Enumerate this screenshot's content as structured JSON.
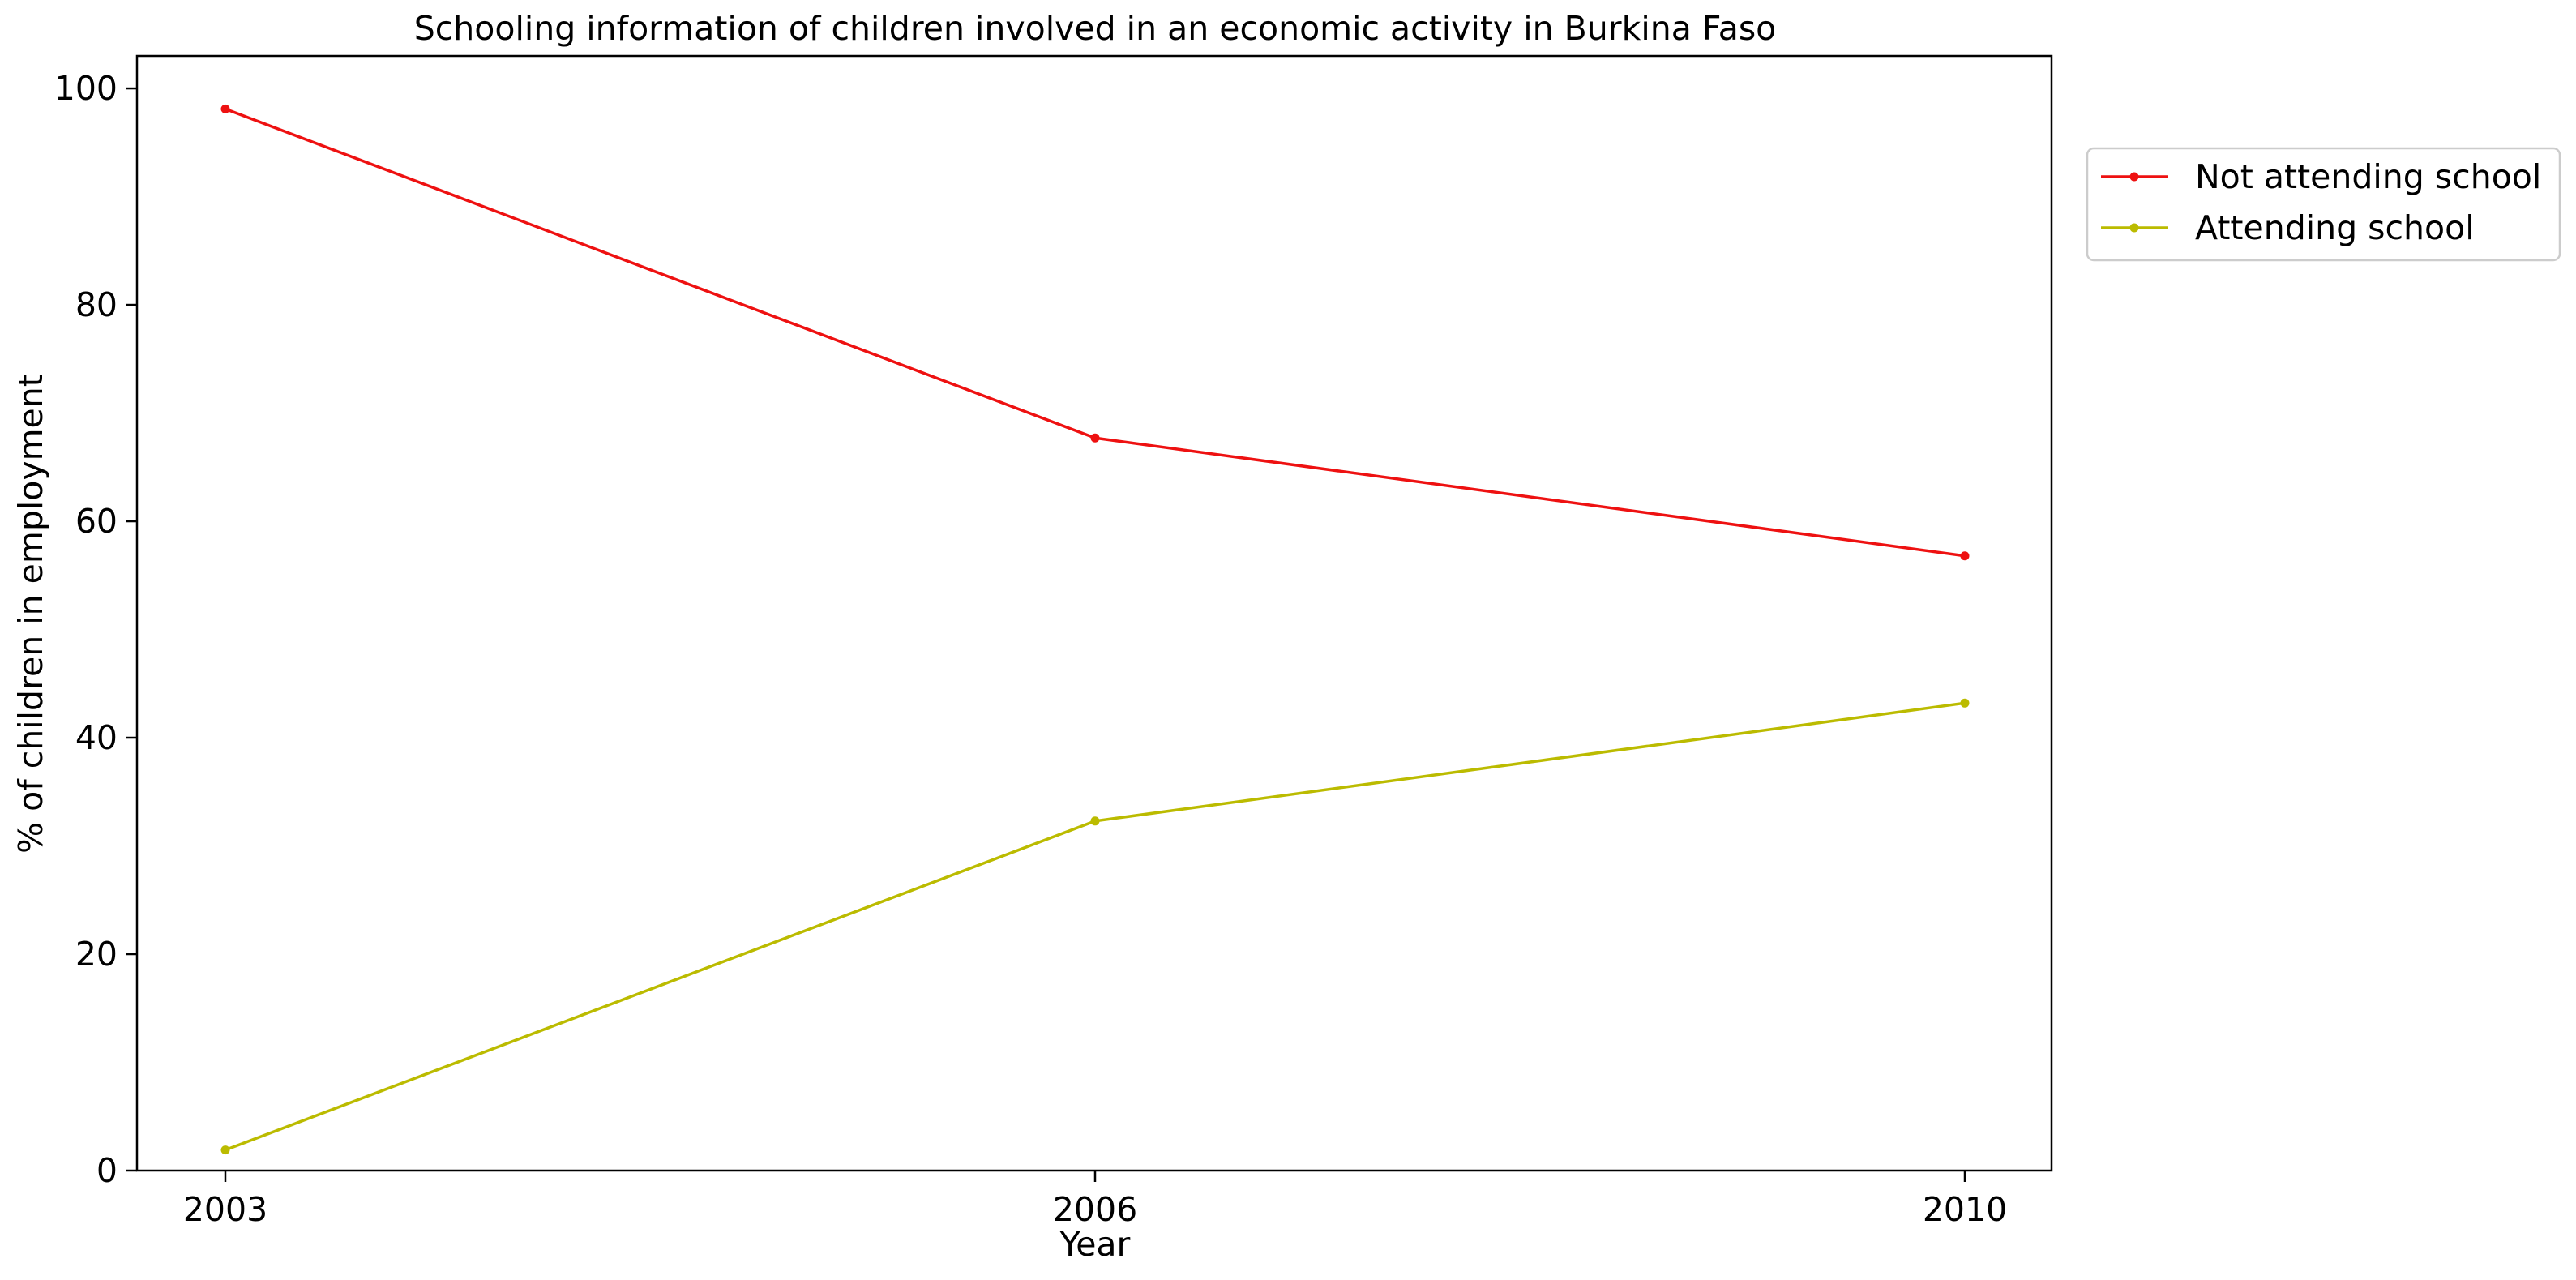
{
  "chart_data": {
    "type": "line",
    "title": "Schooling information of children involved in an economic activity in Burkina Faso",
    "xlabel": "Year",
    "ylabel": "% of children in employment",
    "categories": [
      "2003",
      "2006",
      "2010"
    ],
    "yticks": [
      "0",
      "20",
      "40",
      "60",
      "80",
      "100"
    ],
    "ylim": [
      0,
      103
    ],
    "grid": false,
    "legend_position": "outside-top-right",
    "series": [
      {
        "name": "Not attending school",
        "color": "#ee1111",
        "values": [
          98.1,
          67.7,
          56.8
        ]
      },
      {
        "name": "Attending school",
        "color": "#bbbb00",
        "values": [
          1.9,
          32.3,
          43.2
        ]
      }
    ]
  }
}
